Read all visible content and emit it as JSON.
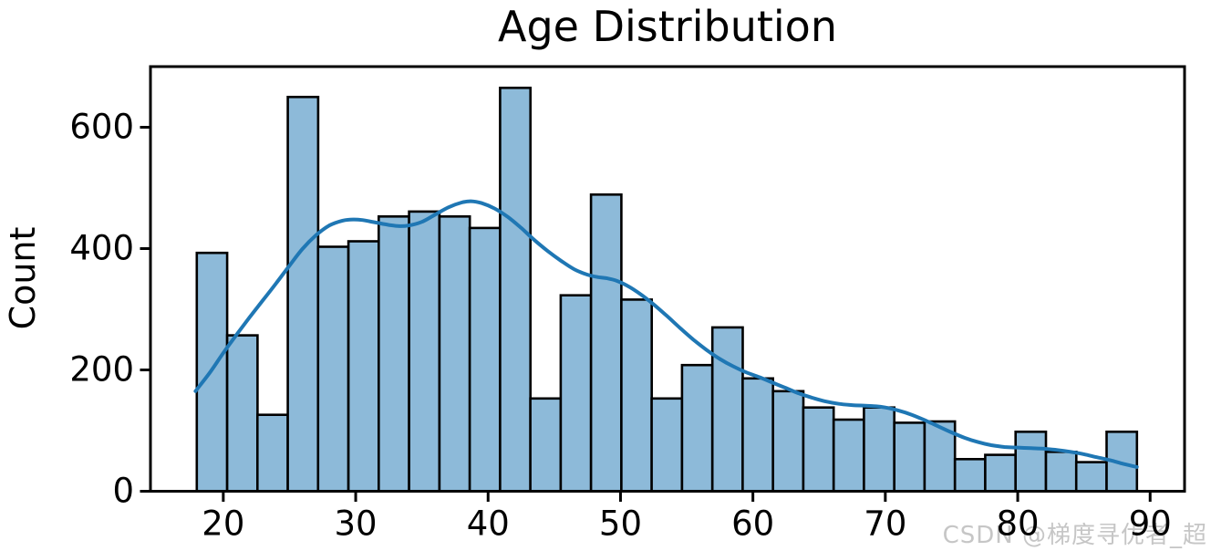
{
  "title": "Age Distribution",
  "ylabel": "Count",
  "watermark": "CSDN @梯度寻优者_超",
  "colors": {
    "background": "#ffffff",
    "bar_fill": "#8dbad9",
    "bar_edge": "#000000",
    "kde_line": "#1f77b4",
    "axis": "#000000",
    "tick_label": "#000000",
    "watermark": "#c6c6c6"
  },
  "chart_data": {
    "type": "histogram+kde",
    "title": "Age Distribution",
    "xlabel": "",
    "ylabel": "Count",
    "grid": false,
    "legend": null,
    "xlim": [
      14.5,
      92.6
    ],
    "ylim": [
      0,
      700
    ],
    "x_ticks": [
      20,
      30,
      40,
      50,
      60,
      70,
      80,
      90
    ],
    "y_ticks": [
      0,
      200,
      400,
      600
    ],
    "bin_start": 18.0,
    "bin_end": 89.0,
    "bin_width": 2.2903,
    "bar_values": [
      393,
      257,
      126,
      650,
      403,
      412,
      453,
      461,
      453,
      434,
      665,
      153,
      323,
      489,
      316,
      153,
      208,
      270,
      186,
      165,
      138,
      118,
      138,
      113,
      115,
      53,
      60,
      98,
      65,
      48,
      98
    ],
    "kde": {
      "x": [
        17.9,
        19,
        20,
        21,
        22,
        23,
        24,
        25,
        26,
        27,
        28,
        29,
        29.8,
        30.5,
        31.5,
        32.5,
        33.3,
        34,
        35,
        36,
        37,
        38,
        38.7,
        39.5,
        40.5,
        41.5,
        42.5,
        43.5,
        44.5,
        45.5,
        46.5,
        47.5,
        48.3,
        49,
        49.7,
        50.5,
        51.5,
        52.5,
        53.5,
        54.5,
        55.5,
        56.5,
        57.5,
        58.5,
        59.5,
        60.5,
        61.5,
        62.5,
        63.5,
        64.5,
        65.5,
        66.5,
        67.5,
        68.5,
        69.3,
        70,
        71,
        72,
        73,
        74,
        75,
        76,
        77,
        78,
        79,
        80,
        81,
        82,
        83,
        84,
        85,
        86,
        87,
        88,
        89
      ],
      "y": [
        165,
        196,
        228,
        258,
        287,
        315,
        343,
        372,
        400,
        422,
        438,
        446,
        448,
        447,
        443,
        439,
        437,
        438,
        444,
        456,
        468,
        476,
        478,
        475,
        466,
        452,
        434,
        414,
        396,
        380,
        366,
        357,
        353,
        351,
        347,
        339,
        325,
        308,
        289,
        269,
        250,
        233,
        218,
        206,
        196,
        188,
        179,
        170,
        161,
        154,
        148,
        144,
        142,
        141,
        140,
        138,
        133,
        126,
        117,
        107,
        97,
        88,
        81,
        76,
        73,
        72,
        71,
        70,
        68,
        65,
        61,
        56,
        51,
        45,
        40
      ]
    }
  }
}
